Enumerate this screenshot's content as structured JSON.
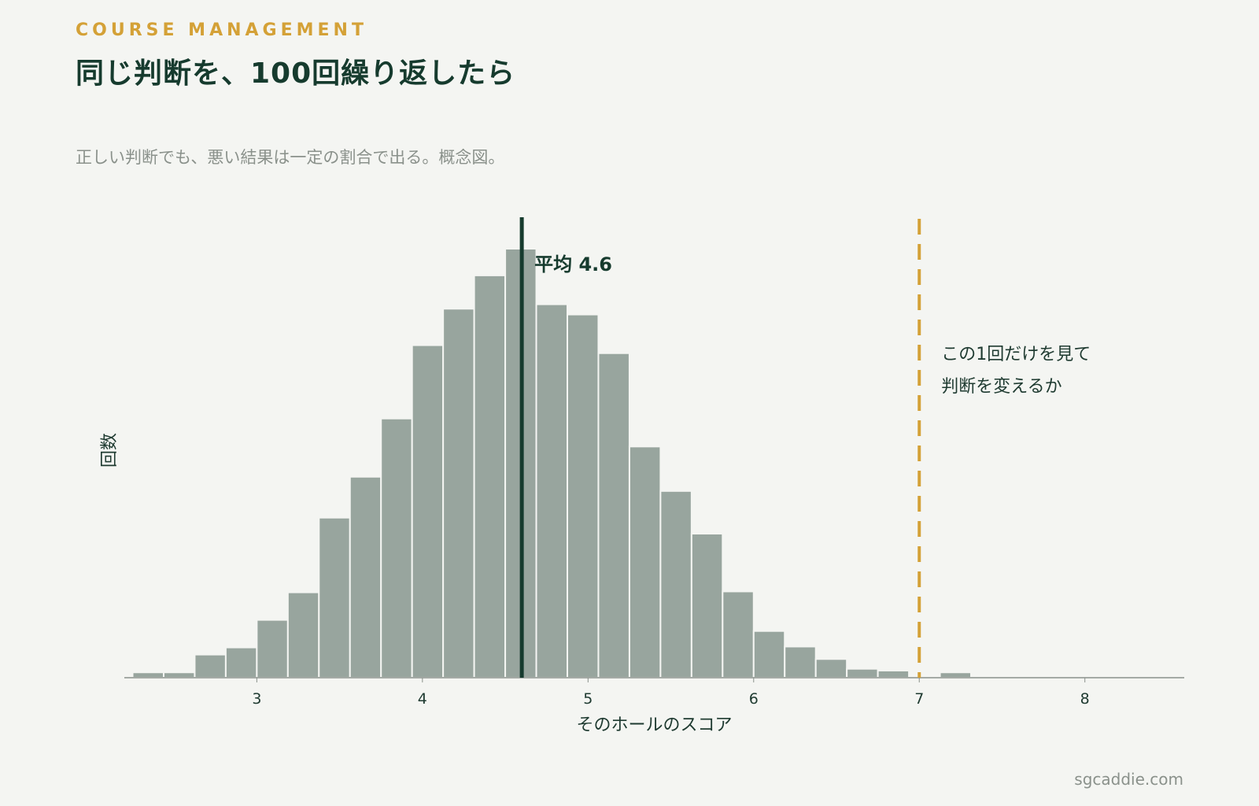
{
  "header": {
    "eyebrow": "COURSE MANAGEMENT",
    "title": "同じ判断を、100回繰り返したら",
    "subtitle": "正しい判断でも、悪い結果は一定の割合で出る。概念図。"
  },
  "footer": {
    "site": "sgcaddie.com"
  },
  "colors": {
    "background": "#f4f5f2",
    "bar": "#98a59e",
    "bar_edge": "#f4f5f2",
    "mean_line": "#163b2e",
    "threshold_line": "#d4a137",
    "title": "#163b2e",
    "accent": "#d4a137",
    "muted_text": "#8a918b"
  },
  "chart_data": {
    "type": "bar",
    "subtype": "histogram",
    "xlabel": "そのホールのスコア",
    "ylabel": "回数",
    "xlim": [
      2.2,
      8.6
    ],
    "ylim": [
      0,
      1.05
    ],
    "y_ticks_shown": false,
    "x_ticks": [
      3,
      4,
      5,
      6,
      7,
      8
    ],
    "bins": {
      "start": 2.25,
      "width": 0.1875,
      "counts": [
        0.012,
        0.012,
        0.052,
        0.068,
        0.13,
        0.192,
        0.36,
        0.452,
        0.583,
        0.748,
        0.83,
        0.905,
        0.965,
        0.84,
        0.817,
        0.73,
        0.52,
        0.42,
        0.324,
        0.194,
        0.105,
        0.07,
        0.042,
        0.02,
        0.016,
        0,
        0.012
      ]
    },
    "mean": {
      "value": 4.6,
      "label": "平均 4.6"
    },
    "threshold": {
      "value": 7,
      "label_lines": [
        "この1回だけを見て",
        "判断を変えるか"
      ]
    }
  }
}
